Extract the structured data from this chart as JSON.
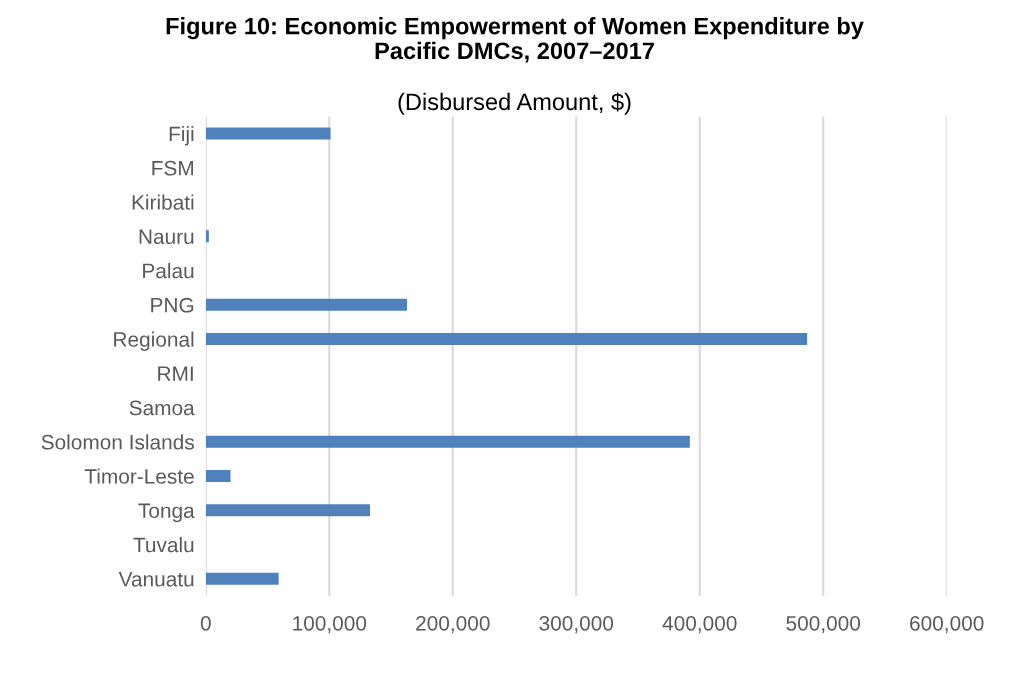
{
  "chart_data": {
    "type": "bar",
    "orientation": "horizontal",
    "title": "Figure 10: Economic Empowerment of Women Expenditure by\nPacific DMCs, 2007–2017",
    "subtitle": "(Disbursed Amount, $)",
    "categories": [
      "Fiji",
      "FSM",
      "Kiribati",
      "Nauru",
      "Palau",
      "PNG",
      "Regional",
      "RMI",
      "Samoa",
      "Solomon Islands",
      "Timor-Leste",
      "Tonga",
      "Tuvalu",
      "Vanuatu"
    ],
    "values": [
      101000,
      0,
      0,
      2500,
      0,
      163000,
      487000,
      0,
      0,
      392000,
      20000,
      133000,
      0,
      59000
    ],
    "color": "#4f81bd",
    "xlim": [
      0,
      600000
    ],
    "xticks": [
      {
        "value": 0,
        "label": "0"
      },
      {
        "value": 100000,
        "label": "100,000"
      },
      {
        "value": 200000,
        "label": "200,000"
      },
      {
        "value": 300000,
        "label": "300,000"
      },
      {
        "value": 400000,
        "label": "400,000"
      },
      {
        "value": 500000,
        "label": "500,000"
      },
      {
        "value": 600000,
        "label": "600,000"
      }
    ],
    "grid": "x"
  }
}
